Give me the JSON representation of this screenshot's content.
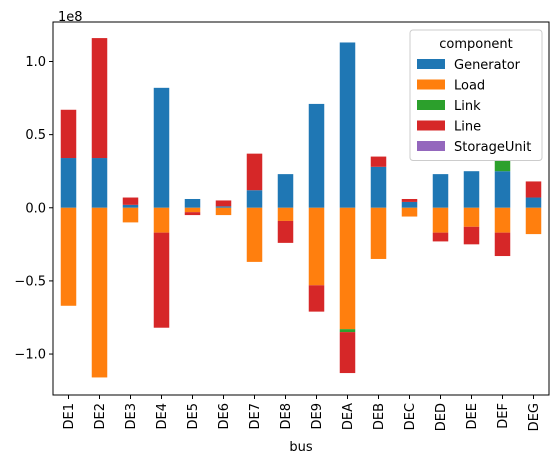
{
  "chart_data": {
    "type": "bar",
    "stacked": true,
    "xlabel": "bus",
    "ylabel": "",
    "ylim": [
      -1.28,
      1.27
    ],
    "y_offset_label": "1e8",
    "y_ticks": [
      -1.0,
      -0.5,
      0.0,
      0.5,
      1.0
    ],
    "y_tick_labels": [
      "−1.0",
      "−0.5",
      "0.0",
      "0.5",
      "1.0"
    ],
    "categories": [
      "DE1",
      "DE2",
      "DE3",
      "DE4",
      "DE5",
      "DE6",
      "DE7",
      "DE8",
      "DE9",
      "DEA",
      "DEB",
      "DEC",
      "DED",
      "DEE",
      "DEF",
      "DEG"
    ],
    "legend": {
      "title": "component",
      "position": "top-right"
    },
    "series": [
      {
        "name": "Generator",
        "color": "#1f77b4",
        "values": [
          0.34,
          0.34,
          0.02,
          0.82,
          0.06,
          0.01,
          0.12,
          0.23,
          0.71,
          1.13,
          0.28,
          0.04,
          0.23,
          0.25,
          0.25,
          0.07
        ]
      },
      {
        "name": "Load",
        "color": "#ff7f0e",
        "values": [
          -0.67,
          -1.16,
          -0.1,
          -0.17,
          -0.03,
          -0.05,
          -0.37,
          -0.09,
          -0.53,
          -0.83,
          -0.35,
          -0.06,
          -0.17,
          -0.13,
          -0.17,
          -0.18
        ]
      },
      {
        "name": "Link",
        "color": "#2ca02c",
        "values": [
          0,
          0,
          0,
          0,
          0,
          0,
          0,
          0,
          0,
          -0.02,
          0,
          0,
          0,
          0,
          0.07,
          0
        ]
      },
      {
        "name": "Line",
        "color": "#d62728",
        "values": [
          0.33,
          0.82,
          0.05,
          -0.65,
          -0.02,
          0.04,
          0.25,
          -0.15,
          -0.18,
          -0.28,
          0.07,
          0.02,
          -0.06,
          -0.12,
          -0.16,
          0.11
        ]
      },
      {
        "name": "StorageUnit",
        "color": "#9467bd",
        "values": [
          0,
          0,
          0,
          0,
          0,
          0,
          0,
          0,
          0,
          0,
          0,
          0,
          0,
          0,
          0,
          0
        ]
      }
    ]
  }
}
